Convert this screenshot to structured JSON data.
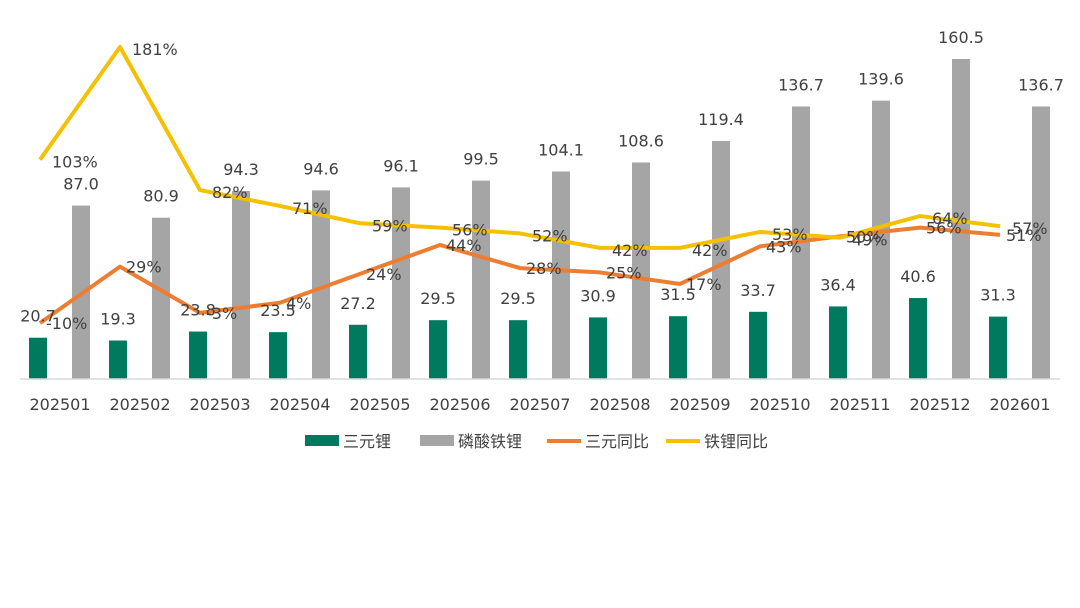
{
  "chart_data": {
    "type": "bar",
    "categories": [
      "202501",
      "202502",
      "202503",
      "202504",
      "202505",
      "202506",
      "202507",
      "202508",
      "202509",
      "202510",
      "202511",
      "202512",
      "202601"
    ],
    "series": [
      {
        "name": "三元锂",
        "kind": "bar",
        "color": "#007a5e",
        "values": [
          20.7,
          19.3,
          23.8,
          23.5,
          27.2,
          29.5,
          29.5,
          30.9,
          31.5,
          33.7,
          36.4,
          40.6,
          31.3
        ],
        "labels": [
          "20.7",
          "19.3",
          "23.8",
          "23.5",
          "27.2",
          "29.5",
          "29.5",
          "30.9",
          "31.5",
          "33.7",
          "36.4",
          "40.6",
          "31.3"
        ]
      },
      {
        "name": "磷酸铁锂",
        "kind": "bar",
        "color": "#a5a5a5",
        "values": [
          87.0,
          80.9,
          94.3,
          94.6,
          96.1,
          99.5,
          104.1,
          108.6,
          119.4,
          136.7,
          139.6,
          160.5,
          136.7
        ],
        "labels": [
          "87.0",
          "80.9",
          "94.3",
          "94.6",
          "96.1",
          "99.5",
          "104.1",
          "108.6",
          "119.4",
          "136.7",
          "139.6",
          "160.5",
          "136.7"
        ]
      },
      {
        "name": "三元同比",
        "kind": "line",
        "color": "#ed7d31",
        "values": [
          -10,
          29,
          -3,
          4,
          24,
          44,
          28,
          25,
          17,
          43,
          50,
          56,
          51
        ],
        "labels": [
          "-10%",
          "29%",
          "-3%",
          "4%",
          "24%",
          "44%",
          "28%",
          "25%",
          "17%",
          "43%",
          "50%",
          "56%",
          "51%"
        ]
      },
      {
        "name": "铁锂同比",
        "kind": "line",
        "color": "#f5c000",
        "values": [
          103,
          181,
          82,
          71,
          59,
          56,
          52,
          42,
          42,
          53,
          49,
          64,
          57
        ],
        "labels": [
          "103%",
          "181%",
          "82%",
          "71%",
          "59%",
          "56%",
          "52%",
          "42%",
          "42%",
          "53%",
          "49%",
          "64%",
          "57%"
        ]
      }
    ],
    "legend_position": "bottom",
    "grid": false,
    "ylim_left": [
      0,
      170
    ],
    "ylim_right": [
      -200,
      200
    ]
  }
}
